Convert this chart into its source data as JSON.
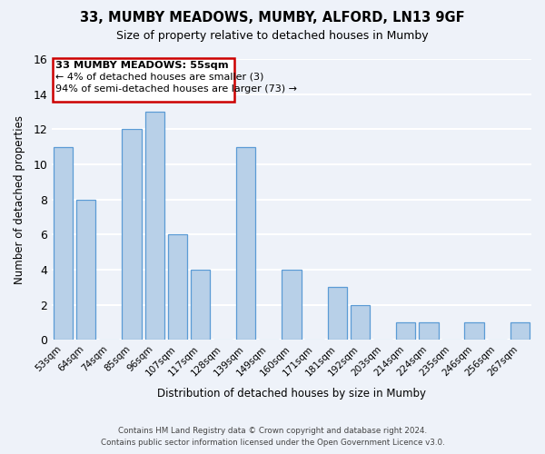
{
  "title1": "33, MUMBY MEADOWS, MUMBY, ALFORD, LN13 9GF",
  "title2": "Size of property relative to detached houses in Mumby",
  "xlabel": "Distribution of detached houses by size in Mumby",
  "ylabel": "Number of detached properties",
  "bar_labels": [
    "53sqm",
    "64sqm",
    "74sqm",
    "85sqm",
    "96sqm",
    "107sqm",
    "117sqm",
    "128sqm",
    "139sqm",
    "149sqm",
    "160sqm",
    "171sqm",
    "181sqm",
    "192sqm",
    "203sqm",
    "214sqm",
    "224sqm",
    "235sqm",
    "246sqm",
    "256sqm",
    "267sqm"
  ],
  "bar_heights": [
    11,
    8,
    0,
    12,
    13,
    6,
    4,
    0,
    11,
    0,
    4,
    0,
    3,
    2,
    0,
    1,
    1,
    0,
    1,
    0,
    1
  ],
  "bar_color": "#b8d0e8",
  "bar_edge_color": "#5b9bd5",
  "annotation_title": "33 MUMBY MEADOWS: 55sqm",
  "annotation_line1": "← 4% of detached houses are smaller (3)",
  "annotation_line2": "94% of semi-detached houses are larger (73) →",
  "annotation_box_color": "#ffffff",
  "annotation_border_color": "#cc0000",
  "footer_line1": "Contains HM Land Registry data © Crown copyright and database right 2024.",
  "footer_line2": "Contains public sector information licensed under the Open Government Licence v3.0.",
  "ylim": [
    0,
    16
  ],
  "yticks": [
    0,
    2,
    4,
    6,
    8,
    10,
    12,
    14,
    16
  ],
  "bg_color": "#eef2f9",
  "grid_color": "#ffffff"
}
